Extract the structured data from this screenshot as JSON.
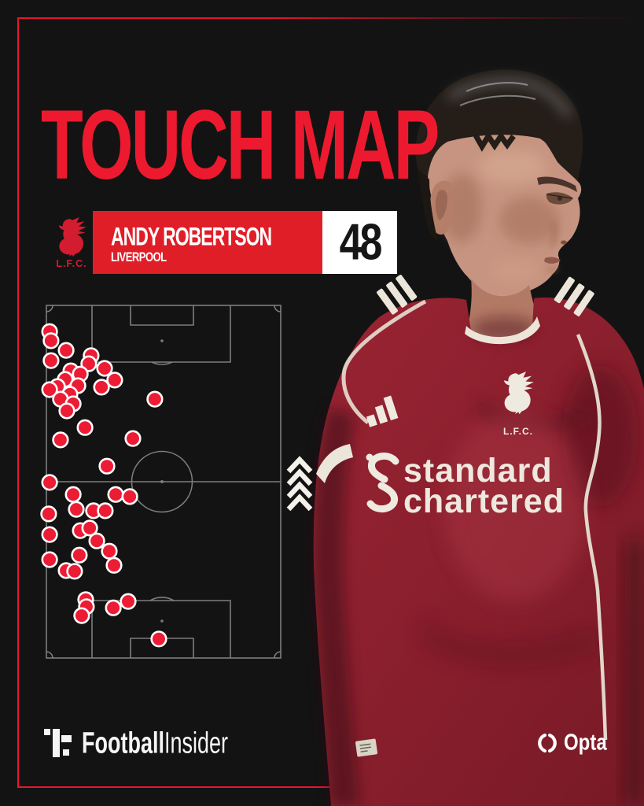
{
  "page": {
    "background": "#131313",
    "frame_color": "#e8152f"
  },
  "title": {
    "text": "TOUCH MAP",
    "color": "#ed1a2f"
  },
  "banner": {
    "crest_label": "L.F.C.",
    "player_name": "ANDY ROBERTSON",
    "team_name": "LIVERPOOL",
    "stat_value": "48",
    "red": "#e01e28",
    "white": "#ffffff"
  },
  "jersey": {
    "sponsor_line1": "standard",
    "sponsor_line2": "chartered",
    "crest_label": "L.F.C."
  },
  "footer": {
    "brand_bold": "Football",
    "brand_regular": "Insider",
    "opta": "Opta"
  },
  "chart_data": {
    "type": "scatter",
    "title": "Touch Map",
    "player": "Andy Robertson",
    "team": "Liverpool",
    "touches": 48,
    "pitch": {
      "orientation": "portrait",
      "line_color": "#7d7d7d",
      "background": "#131313",
      "note": "x,y are percent of pitch width/height from top-left; attacking toward top"
    },
    "dot_style": {
      "fill": "#ec1c35",
      "stroke": "#ffffff"
    },
    "points_pct": [
      [
        1.7,
        7.6
      ],
      [
        2.3,
        10.2
      ],
      [
        8.7,
        12.9
      ],
      [
        2.3,
        15.8
      ],
      [
        19.3,
        14.4
      ],
      [
        18.3,
        16.7
      ],
      [
        25.0,
        18.0
      ],
      [
        10.7,
        18.7
      ],
      [
        14.7,
        19.6
      ],
      [
        8.3,
        21.1
      ],
      [
        29.3,
        21.3
      ],
      [
        13.7,
        22.9
      ],
      [
        5.0,
        23.1
      ],
      [
        1.7,
        24.0
      ],
      [
        23.7,
        23.3
      ],
      [
        10.3,
        25.3
      ],
      [
        6.3,
        26.7
      ],
      [
        11.7,
        28.0
      ],
      [
        9.0,
        30.0
      ],
      [
        46.3,
        26.7
      ],
      [
        16.7,
        34.7
      ],
      [
        6.3,
        38.2
      ],
      [
        37.0,
        37.8
      ],
      [
        26.0,
        45.6
      ],
      [
        1.7,
        50.2
      ],
      [
        11.7,
        53.6
      ],
      [
        29.7,
        53.6
      ],
      [
        35.7,
        54.2
      ],
      [
        13.0,
        57.8
      ],
      [
        20.3,
        58.2
      ],
      [
        25.3,
        58.2
      ],
      [
        1.3,
        59.1
      ],
      [
        14.7,
        63.8
      ],
      [
        18.7,
        63.1
      ],
      [
        1.7,
        64.9
      ],
      [
        21.7,
        66.7
      ],
      [
        14.3,
        70.7
      ],
      [
        27.0,
        69.6
      ],
      [
        1.7,
        72.0
      ],
      [
        29.0,
        73.6
      ],
      [
        8.7,
        75.1
      ],
      [
        12.3,
        75.3
      ],
      [
        17.0,
        83.3
      ],
      [
        17.3,
        85.3
      ],
      [
        15.3,
        87.8
      ],
      [
        28.7,
        85.6
      ],
      [
        35.0,
        83.8
      ],
      [
        48.0,
        94.4
      ]
    ]
  }
}
